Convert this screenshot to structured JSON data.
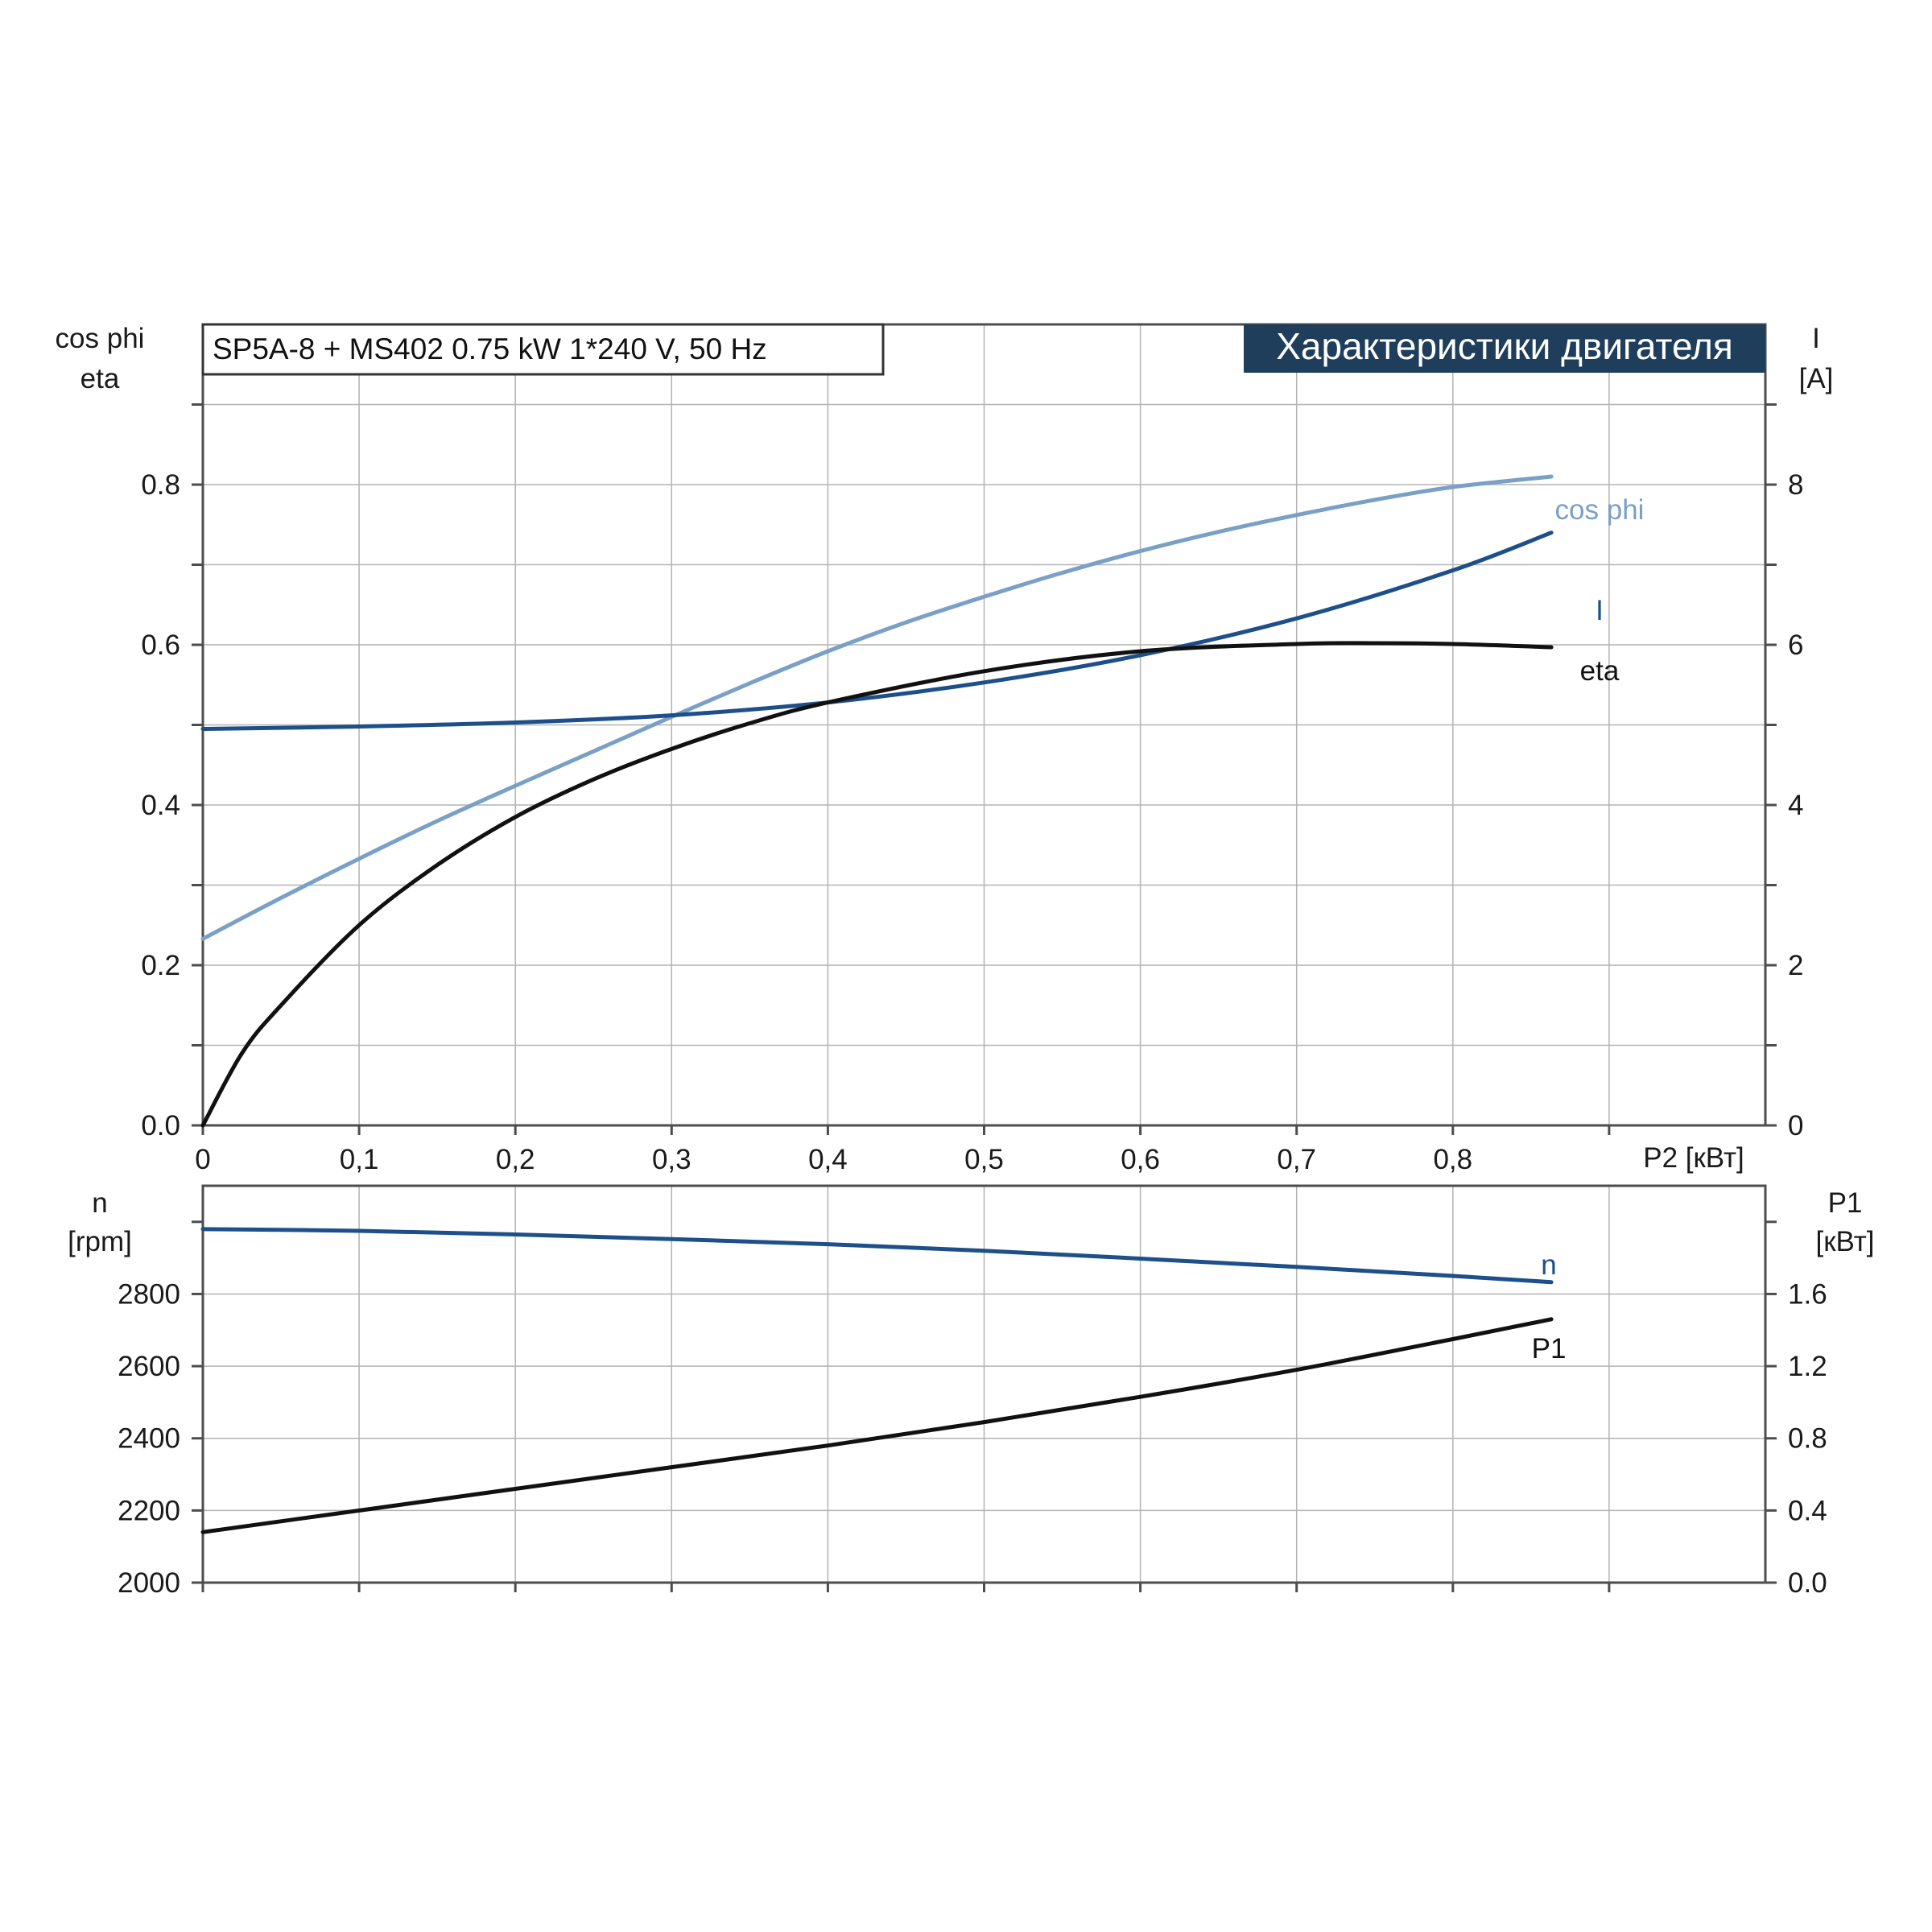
{
  "colors": {
    "black": "#111111",
    "dark_blue": "#1d4f8a",
    "light_blue": "#7aa0c6",
    "header_bg": "#1f3e5c",
    "header_text": "#ffffff"
  },
  "info_box": {
    "text": "SP5A-8 + MS402   0.75 kW   1*240 V, 50 Hz"
  },
  "header": {
    "title": "Характеристики двигателя"
  },
  "chart_data": [
    {
      "type": "line",
      "x_axis": {
        "label": "P2 [кВт]",
        "range": [
          0,
          1.0
        ],
        "ticks": [
          0,
          0.1,
          0.2,
          0.3,
          0.4,
          0.5,
          0.6,
          0.7,
          0.8,
          0.9,
          1.0
        ],
        "tick_labels": [
          "0",
          "0,1",
          "0,2",
          "0,3",
          "0,4",
          "0,5",
          "0,6",
          "0,7",
          "0,8",
          "",
          ""
        ]
      },
      "y_left": {
        "label_line1": "cos phi",
        "label_line2": "eta",
        "range": [
          0,
          1.0
        ],
        "ticks": [
          0,
          0.1,
          0.2,
          0.3,
          0.4,
          0.5,
          0.6,
          0.7,
          0.8,
          0.9,
          1.0
        ],
        "tick_labels": [
          "0.0",
          "",
          "0.2",
          "",
          "0.4",
          "",
          "0.6",
          "",
          "0.8",
          "",
          ""
        ]
      },
      "y_right": {
        "label_line1": "I",
        "label_line2": "[A]",
        "range": [
          0,
          10
        ],
        "ticks": [
          0,
          1,
          2,
          3,
          4,
          5,
          6,
          7,
          8,
          9,
          10
        ],
        "tick_labels": [
          "0",
          "",
          "2",
          "",
          "4",
          "",
          "6",
          "",
          "8",
          "",
          ""
        ]
      },
      "grid": true,
      "series": [
        {
          "name": "cos phi",
          "axis": "left",
          "color": "light_blue",
          "x": [
            0,
            0.05,
            0.1,
            0.15,
            0.2,
            0.25,
            0.3,
            0.35,
            0.4,
            0.45,
            0.5,
            0.55,
            0.6,
            0.65,
            0.7,
            0.75,
            0.8,
            0.863
          ],
          "y": [
            0.233,
            0.284,
            0.333,
            0.38,
            0.424,
            0.467,
            0.51,
            0.552,
            0.592,
            0.628,
            0.66,
            0.69,
            0.717,
            0.741,
            0.762,
            0.781,
            0.797,
            0.81
          ]
        },
        {
          "name": "I",
          "axis": "right",
          "color": "dark_blue",
          "x": [
            0,
            0.1,
            0.2,
            0.3,
            0.4,
            0.5,
            0.6,
            0.7,
            0.8,
            0.863
          ],
          "y": [
            4.95,
            4.98,
            5.03,
            5.12,
            5.28,
            5.53,
            5.87,
            6.33,
            6.93,
            7.4
          ]
        },
        {
          "name": "eta",
          "axis": "left",
          "color": "black",
          "x": [
            0,
            0.025,
            0.05,
            0.1,
            0.15,
            0.2,
            0.25,
            0.3,
            0.35,
            0.4,
            0.5,
            0.6,
            0.7,
            0.75,
            0.8,
            0.863
          ],
          "y": [
            0.0,
            0.09,
            0.15,
            0.25,
            0.325,
            0.385,
            0.432,
            0.47,
            0.502,
            0.528,
            0.567,
            0.592,
            0.601,
            0.602,
            0.601,
            0.597
          ]
        }
      ]
    },
    {
      "type": "line",
      "x_axis": {
        "range": [
          0,
          1.0
        ],
        "ticks": [
          0,
          0.1,
          0.2,
          0.3,
          0.4,
          0.5,
          0.6,
          0.7,
          0.8,
          0.9,
          1.0
        ]
      },
      "y_left": {
        "label_line1": "n",
        "label_line2": "[rpm]",
        "range": [
          2000,
          3100
        ],
        "ticks": [
          2000,
          2200,
          2400,
          2600,
          2800,
          3000
        ],
        "tick_labels": [
          "2000",
          "2200",
          "2400",
          "2600",
          "2800",
          ""
        ]
      },
      "y_right": {
        "label_line1": "P1",
        "label_line2": "[кВт]",
        "range": [
          0,
          2.2
        ],
        "ticks": [
          0,
          0.4,
          0.8,
          1.2,
          1.6,
          2.0
        ],
        "tick_labels": [
          "0.0",
          "0.4",
          "0.8",
          "1.2",
          "1.6",
          ""
        ]
      },
      "grid": true,
      "series": [
        {
          "name": "n",
          "axis": "left",
          "color": "dark_blue",
          "x": [
            0,
            0.1,
            0.2,
            0.3,
            0.4,
            0.5,
            0.6,
            0.7,
            0.8,
            0.863
          ],
          "y": [
            2980,
            2975,
            2965,
            2952,
            2938,
            2920,
            2898,
            2875,
            2850,
            2833
          ]
        },
        {
          "name": "P1",
          "axis": "right",
          "color": "black",
          "x": [
            0,
            0.1,
            0.2,
            0.3,
            0.4,
            0.5,
            0.6,
            0.7,
            0.8,
            0.863
          ],
          "y": [
            0.28,
            0.4,
            0.52,
            0.64,
            0.76,
            0.89,
            1.03,
            1.18,
            1.35,
            1.46
          ]
        }
      ]
    }
  ]
}
